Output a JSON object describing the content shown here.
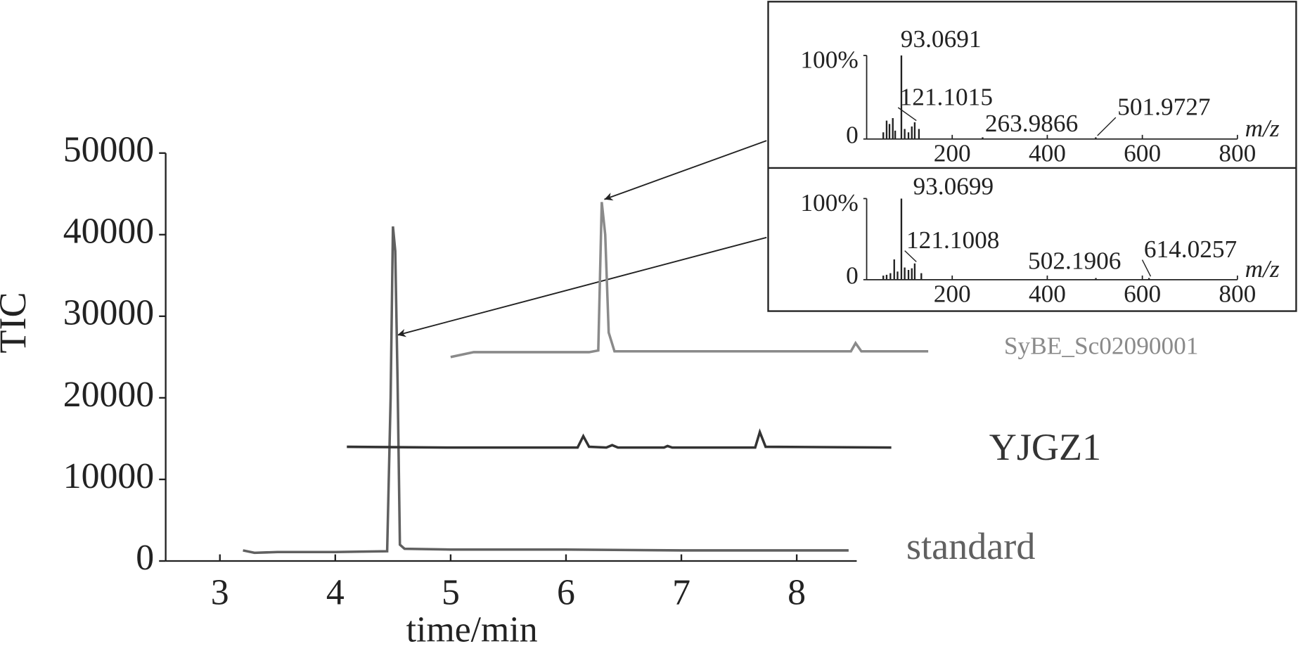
{
  "chart_data": [
    {
      "type": "line",
      "xlabel": "time/min",
      "ylabel": "TIC",
      "xlim": [
        2.53,
        8.52
      ],
      "xticks": [
        3,
        4,
        5,
        6,
        7,
        8
      ],
      "ylim": [
        0,
        50000
      ],
      "yticks": [
        0,
        10000,
        20000,
        30000,
        40000,
        50000
      ],
      "series": [
        {
          "name": "standard",
          "color": "#606060",
          "x": [
            3.2,
            3.3,
            3.5,
            4.0,
            4.45,
            4.48,
            4.5,
            4.52,
            4.54,
            4.56,
            4.6,
            5.0,
            6.0,
            7.0,
            8.45
          ],
          "values": [
            1300,
            1000,
            1100,
            1100,
            1200,
            20000,
            41000,
            38000,
            22000,
            2000,
            1500,
            1400,
            1400,
            1300,
            1300
          ]
        },
        {
          "name": "YJGZ1",
          "color": "#333333",
          "x": [
            4.1,
            5.0,
            6.1,
            6.15,
            6.2,
            6.35,
            6.4,
            6.45,
            6.85,
            6.88,
            6.92,
            7.64,
            7.68,
            7.73,
            8.82
          ],
          "values": [
            14000,
            13900,
            13900,
            15300,
            14000,
            13900,
            14200,
            13900,
            13900,
            14100,
            13900,
            13900,
            15800,
            14000,
            13900
          ]
        },
        {
          "name": "SyBE_Sc02090001",
          "color": "#8a8a8a",
          "x": [
            5.0,
            5.2,
            6.2,
            6.28,
            6.31,
            6.34,
            6.37,
            6.42,
            7.5,
            8.47,
            8.51,
            8.56,
            9.14
          ],
          "values": [
            25000,
            25600,
            25600,
            25800,
            44000,
            40000,
            28000,
            25700,
            25700,
            25700,
            26700,
            25700,
            25700
          ]
        }
      ]
    },
    {
      "type": "stem",
      "xlabel": "m/z",
      "color": "#222222",
      "xlim": [
        20,
        800
      ],
      "xticks": [
        200,
        400,
        600,
        800
      ],
      "ylim": [
        0,
        100
      ],
      "yticks": [
        0,
        {
          "value": 100,
          "label": "100%"
        }
      ],
      "x": [
        55,
        62,
        68,
        75,
        80,
        93.0691,
        100,
        108,
        115,
        121.1015,
        130,
        263.9866,
        501.9727
      ],
      "values": [
        8,
        22,
        18,
        25,
        10,
        100,
        12,
        8,
        15,
        20,
        12,
        2,
        2
      ],
      "annotations": [
        93.0691,
        121.1015,
        263.9866,
        501.9727
      ]
    },
    {
      "type": "stem",
      "xlabel": "m/z",
      "color": "#222222",
      "xlim": [
        20,
        800
      ],
      "xticks": [
        200,
        400,
        600,
        800
      ],
      "ylim": [
        0,
        100
      ],
      "yticks": [
        0,
        {
          "value": 100,
          "label": "100%"
        }
      ],
      "x": [
        55,
        62,
        70,
        78,
        85,
        93.0699,
        100,
        108,
        115,
        121.1008,
        135,
        502.1906,
        614.0257
      ],
      "values": [
        5,
        6,
        8,
        25,
        10,
        100,
        15,
        12,
        14,
        20,
        8,
        2,
        2
      ],
      "annotations": [
        93.0699,
        121.1008,
        502.1906,
        614.0257
      ]
    }
  ]
}
